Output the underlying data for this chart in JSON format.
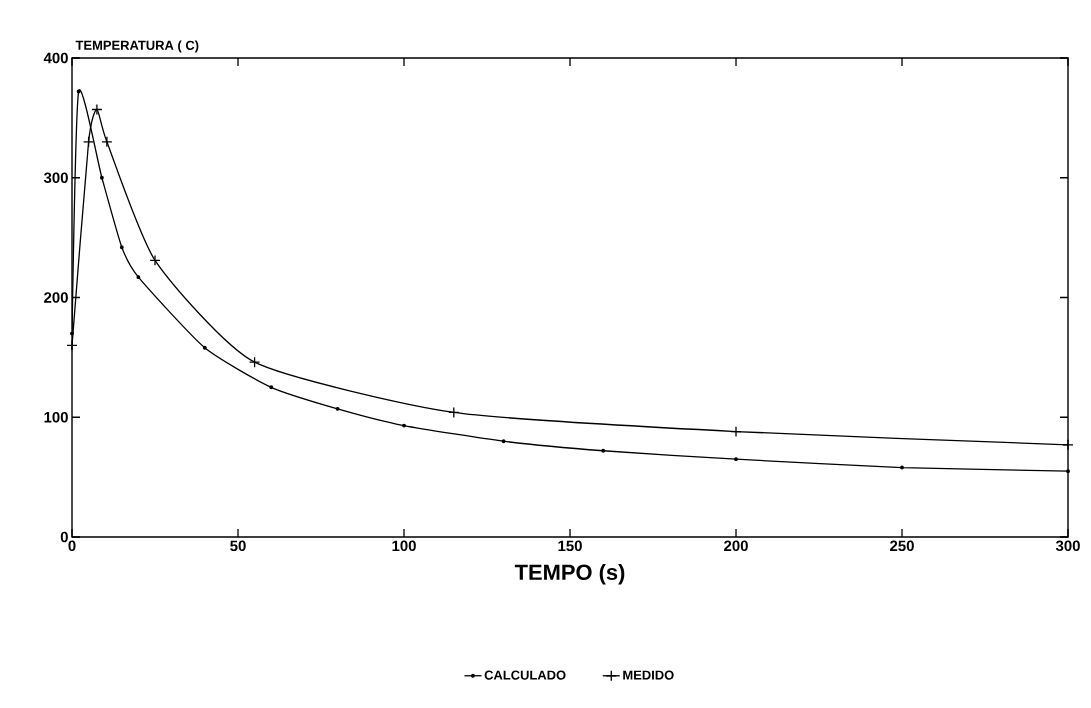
{
  "chart_data": {
    "type": "line",
    "xlabel": "TEMPO (s)",
    "ylabel": "TEMPERATURA ( C)",
    "xlim": [
      0,
      300
    ],
    "ylim": [
      0,
      400
    ],
    "xticks": [
      0,
      50,
      100,
      150,
      200,
      250,
      300
    ],
    "yticks": [
      0,
      100,
      200,
      300,
      400
    ],
    "grid": false,
    "legend": "bottom",
    "series": [
      {
        "name": "CALCULADO",
        "color": "#000000",
        "marker": "circle",
        "x": [
          0,
          2,
          9,
          15,
          20,
          40,
          60,
          80,
          100,
          130,
          160,
          200,
          250,
          300
        ],
        "values": [
          170,
          372,
          300,
          242,
          217,
          158,
          125,
          107,
          93,
          80,
          72,
          65,
          58,
          55
        ]
      },
      {
        "name": "MEDIDO",
        "color": "#000000",
        "marker": "cross",
        "x": [
          0,
          5,
          7.5,
          10.5,
          25,
          55,
          115,
          200,
          300
        ],
        "values": [
          160,
          330,
          357,
          330,
          231,
          146,
          104,
          88,
          77
        ]
      }
    ]
  }
}
